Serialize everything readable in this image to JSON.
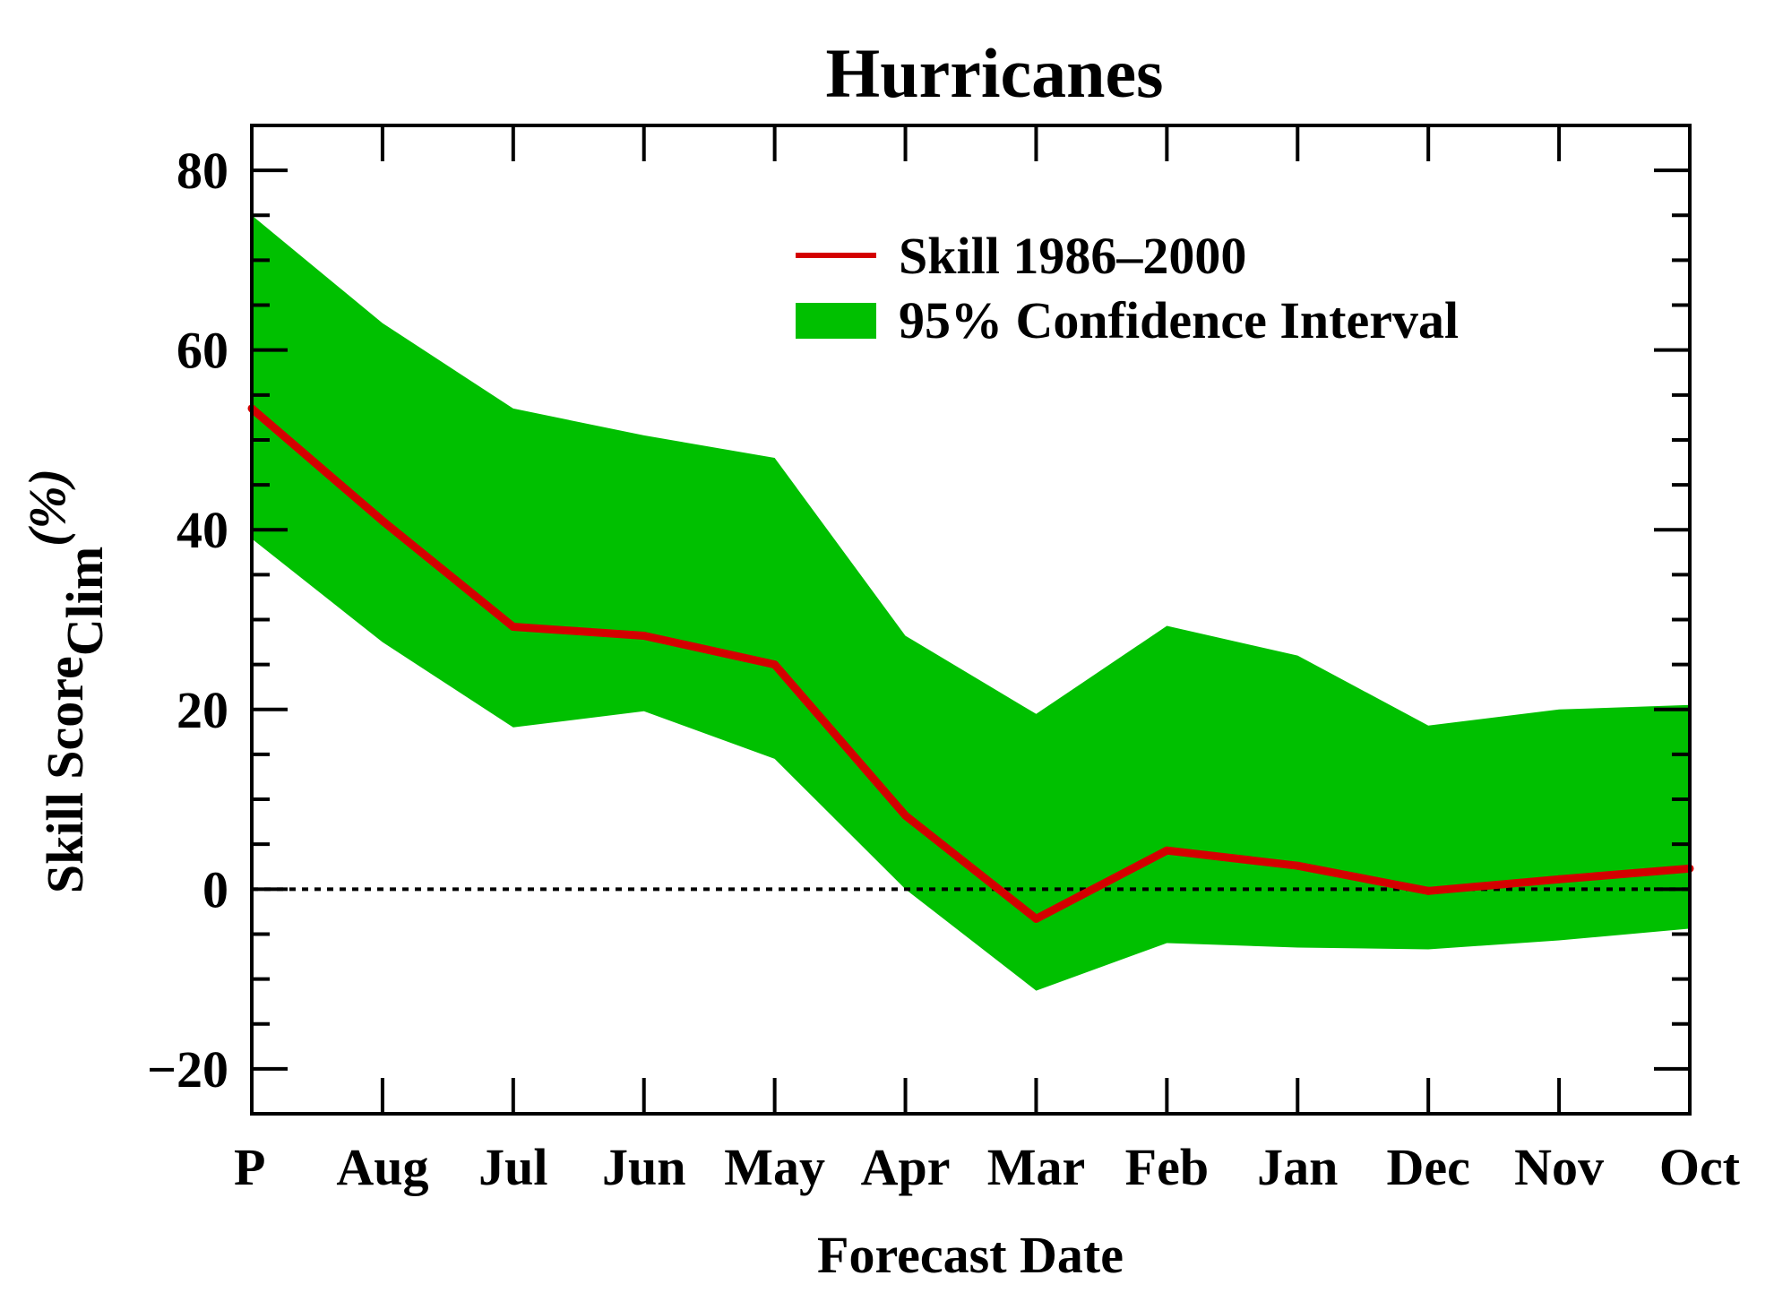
{
  "chart_data": {
    "type": "line",
    "title": "Hurricanes",
    "xlabel": "Forecast Date",
    "ylabel_main": "Skill Score",
    "ylabel_sub": "Clim",
    "ylabel_unit": "(%)",
    "categories": [
      "P",
      "Aug",
      "Jul",
      "Jun",
      "May",
      "Apr",
      "Mar",
      "Feb",
      "Jan",
      "Dec",
      "Nov",
      "Oct"
    ],
    "ylim": [
      -25,
      85
    ],
    "yticks": [
      -20,
      0,
      20,
      40,
      60,
      80
    ],
    "ytick_labels": [
      "−20",
      "0",
      "20",
      "40",
      "60",
      "80"
    ],
    "reference_line": 0,
    "series": [
      {
        "name": "Skill 1986–2000",
        "color": "#d40000",
        "values": [
          53.5,
          41,
          29.2,
          28.2,
          25,
          8.2,
          -3.3,
          4.3,
          2.6,
          -0.2,
          1.1,
          2.3
        ]
      }
    ],
    "band": {
      "name": "95% Confidence Interval",
      "color": "#00c000",
      "upper": [
        75,
        63,
        53.5,
        50.5,
        48,
        28.2,
        19.5,
        29.3,
        26,
        18.2,
        20,
        20.5
      ],
      "lower": [
        39,
        27.5,
        18,
        19.8,
        14.5,
        0,
        -11.3,
        -6,
        -6.5,
        -6.7,
        -5.7,
        -4.4
      ]
    },
    "legend_position": "top-right",
    "grid": false
  }
}
